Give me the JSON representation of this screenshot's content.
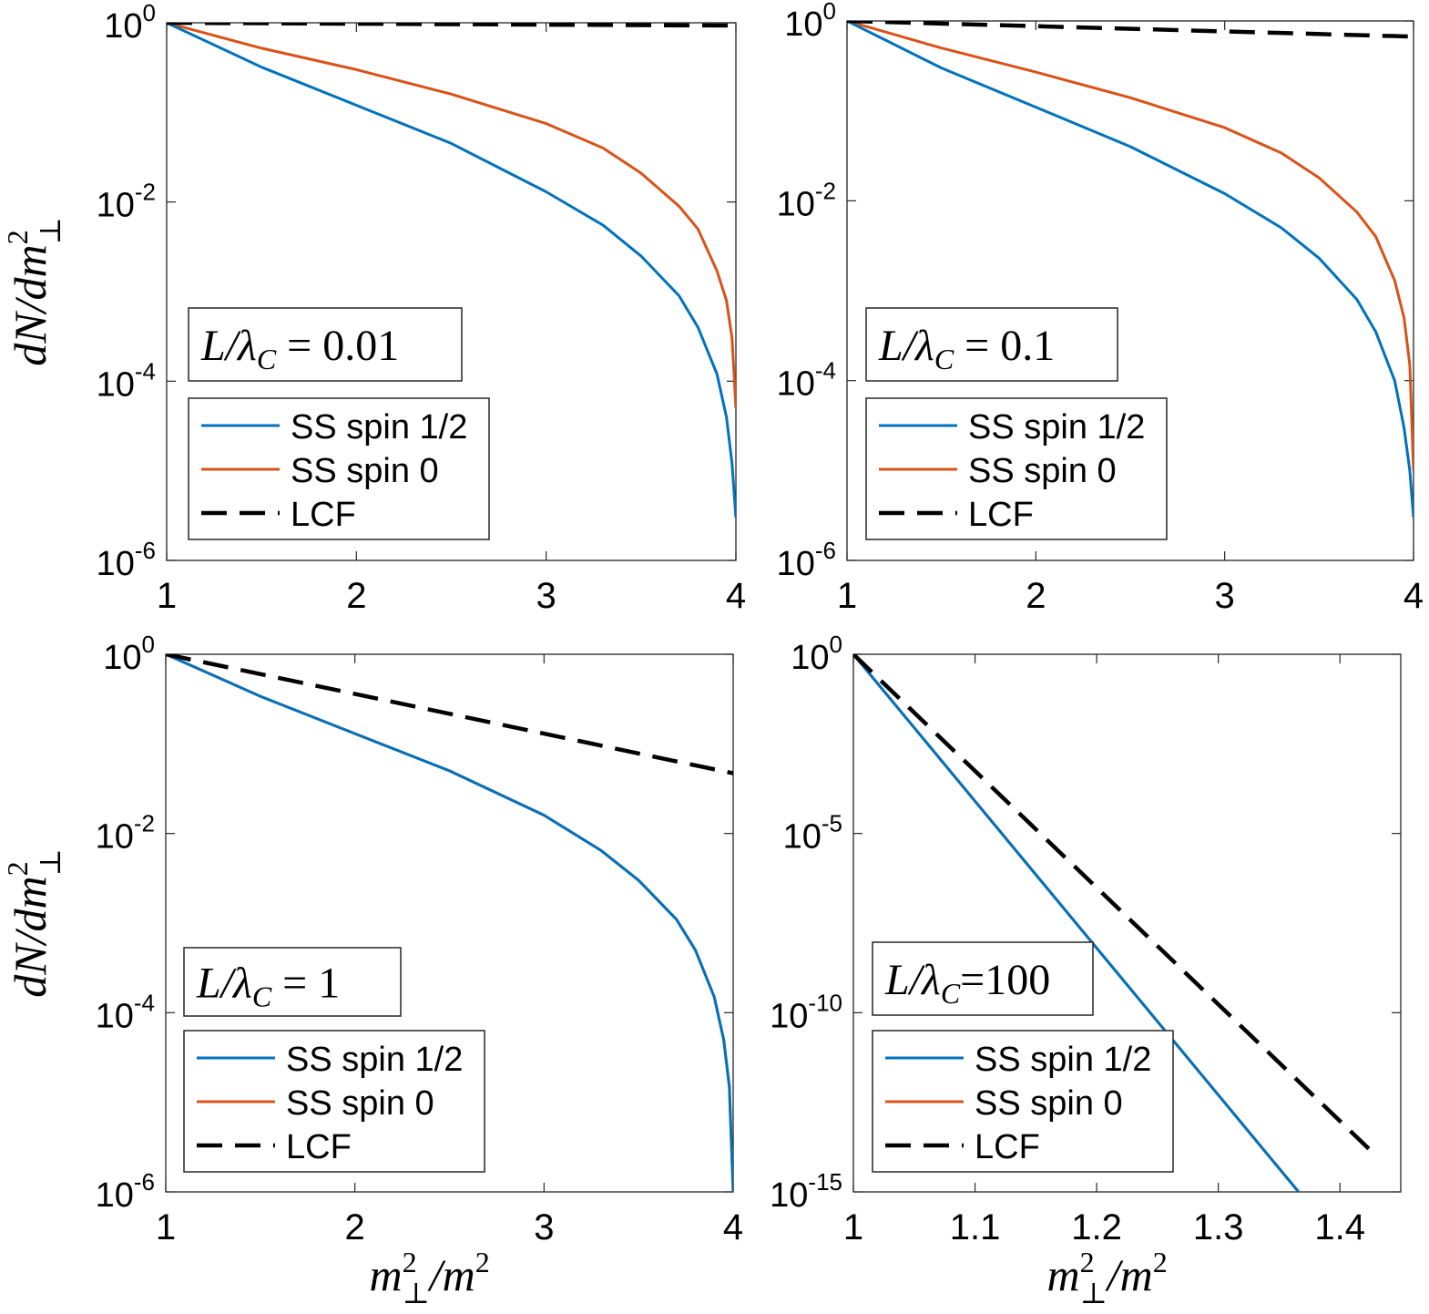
{
  "chart_data": [
    {
      "type": "line",
      "panel": "top-left",
      "annotation": {
        "lhs": "L/λ",
        "sub": "C",
        "rel": " = ",
        "value": "0.01"
      },
      "ylabel": {
        "base": "dN/dm",
        "sup": "2",
        "sub": "⊥"
      },
      "xlabel": null,
      "yscale": "log",
      "xlim": [
        1,
        4
      ],
      "ylim": [
        1e-06,
        1
      ],
      "xticks": [
        1,
        2,
        3,
        4
      ],
      "xtick_labels": [
        "1",
        "2",
        "3",
        "4"
      ],
      "yticks": [
        1e-06,
        0.0001,
        0.01,
        1
      ],
      "ytick_labels": [
        {
          "base": "10",
          "exp": "-6"
        },
        {
          "base": "10",
          "exp": "-4"
        },
        {
          "base": "10",
          "exp": "-2"
        },
        {
          "base": "10",
          "exp": "0"
        }
      ],
      "legend": {
        "position": "bottom-left",
        "entries": [
          "SS spin 1/2",
          "SS spin 0",
          "LCF"
        ]
      },
      "series": [
        {
          "name": "SS spin 1/2",
          "color": "#0072bd",
          "style": "solid",
          "x": [
            1,
            1.5,
            2,
            2.5,
            3,
            3.3,
            3.5,
            3.7,
            3.8,
            3.9,
            3.95,
            3.98,
            4.0
          ],
          "y": [
            1,
            0.32,
            0.12,
            0.045,
            0.013,
            0.0055,
            0.0025,
            0.0009,
            0.0004,
            0.00012,
            4e-05,
            1.2e-05,
            3e-06
          ]
        },
        {
          "name": "SS spin 0",
          "color": "#d95319",
          "style": "solid",
          "x": [
            1,
            1.5,
            2,
            2.5,
            3,
            3.3,
            3.5,
            3.7,
            3.8,
            3.9,
            3.95,
            3.98,
            4.0
          ],
          "y": [
            1,
            0.52,
            0.3,
            0.16,
            0.075,
            0.04,
            0.021,
            0.009,
            0.005,
            0.0017,
            0.0008,
            0.0003,
            5e-05
          ]
        },
        {
          "name": "LCF",
          "color": "#000000",
          "style": "dashed",
          "x": [
            1,
            4
          ],
          "y": [
            1,
            0.93
          ]
        }
      ]
    },
    {
      "type": "line",
      "panel": "top-right",
      "annotation": {
        "lhs": "L/λ",
        "sub": "C",
        "rel": " = ",
        "value": "0.1"
      },
      "ylabel": null,
      "xlabel": null,
      "yscale": "log",
      "xlim": [
        1,
        4
      ],
      "ylim": [
        1e-06,
        1
      ],
      "xticks": [
        1,
        2,
        3,
        4
      ],
      "xtick_labels": [
        "1",
        "2",
        "3",
        "4"
      ],
      "yticks": [
        1e-06,
        0.0001,
        0.01,
        1
      ],
      "ytick_labels": [
        {
          "base": "10",
          "exp": "-6"
        },
        {
          "base": "10",
          "exp": "-4"
        },
        {
          "base": "10",
          "exp": "-2"
        },
        {
          "base": "10",
          "exp": "0"
        }
      ],
      "legend": {
        "position": "bottom-left",
        "entries": [
          "SS spin 1/2",
          "SS spin 0",
          "LCF"
        ]
      },
      "series": [
        {
          "name": "SS spin 1/2",
          "color": "#0072bd",
          "style": "solid",
          "x": [
            1,
            1.5,
            2,
            2.5,
            3,
            3.3,
            3.5,
            3.7,
            3.8,
            3.9,
            3.95,
            3.98,
            4.0
          ],
          "y": [
            1,
            0.3,
            0.11,
            0.04,
            0.012,
            0.005,
            0.0023,
            0.0008,
            0.00035,
            0.0001,
            3e-05,
            1e-05,
            3e-06
          ]
        },
        {
          "name": "SS spin 0",
          "color": "#d95319",
          "style": "solid",
          "x": [
            1,
            1.5,
            2,
            2.5,
            3,
            3.3,
            3.5,
            3.7,
            3.8,
            3.9,
            3.95,
            3.98,
            4.0
          ],
          "y": [
            1,
            0.5,
            0.27,
            0.14,
            0.065,
            0.034,
            0.018,
            0.0075,
            0.004,
            0.0013,
            0.0005,
            0.00015,
            1e-05
          ]
        },
        {
          "name": "LCF",
          "color": "#000000",
          "style": "dashed",
          "x": [
            1,
            4
          ],
          "y": [
            1,
            0.67
          ]
        }
      ]
    },
    {
      "type": "line",
      "panel": "bottom-left",
      "annotation": {
        "lhs": "L/λ",
        "sub": "C",
        "rel": " = ",
        "value": "1"
      },
      "ylabel": {
        "base": "dN/dm",
        "sup": "2",
        "sub": "⊥"
      },
      "xlabel": {
        "base": "m",
        "sup": "2",
        "sub": "⊥",
        "rest": "/m",
        "rest_sup": "2"
      },
      "yscale": "log",
      "xlim": [
        1,
        4
      ],
      "ylim": [
        1e-06,
        1
      ],
      "xticks": [
        1,
        2,
        3,
        4
      ],
      "xtick_labels": [
        "1",
        "2",
        "3",
        "4"
      ],
      "yticks": [
        1e-06,
        0.0001,
        0.01,
        1
      ],
      "ytick_labels": [
        {
          "base": "10",
          "exp": "-6"
        },
        {
          "base": "10",
          "exp": "-4"
        },
        {
          "base": "10",
          "exp": "-2"
        },
        {
          "base": "10",
          "exp": "0"
        }
      ],
      "legend": {
        "position": "bottom-left",
        "entries": [
          "SS spin 1/2",
          "SS spin 0",
          "LCF"
        ]
      },
      "series": [
        {
          "name": "SS spin 1/2",
          "color": "#0072bd",
          "style": "solid",
          "x": [
            1,
            1.5,
            2,
            2.5,
            3,
            3.3,
            3.5,
            3.7,
            3.8,
            3.9,
            3.95,
            3.98,
            4.0
          ],
          "y": [
            1,
            0.34,
            0.13,
            0.05,
            0.016,
            0.0065,
            0.003,
            0.0011,
            0.0005,
            0.00015,
            5e-05,
            1.5e-05,
            1e-06
          ]
        },
        {
          "name": "SS spin 0",
          "color": "#d95319",
          "style": "solid",
          "x": [
            1,
            1.5,
            2,
            2.5,
            3,
            3.3,
            3.5,
            3.7,
            3.8,
            3.9,
            3.95,
            3.98,
            4.0
          ],
          "y": [
            1,
            0.34,
            0.13,
            0.05,
            0.016,
            0.0065,
            0.003,
            0.0011,
            0.0005,
            0.00015,
            5e-05,
            1.5e-05,
            1e-06
          ]
        },
        {
          "name": "LCF",
          "color": "#000000",
          "style": "dashed",
          "x": [
            1,
            4
          ],
          "y": [
            1,
            0.047
          ]
        }
      ]
    },
    {
      "type": "line",
      "panel": "bottom-right",
      "annotation": {
        "lhs": "L/λ",
        "sub": "C",
        "rel": "=",
        "value": "100"
      },
      "ylabel": null,
      "xlabel": {
        "base": "m",
        "sup": "2",
        "sub": "⊥",
        "rest": "/m",
        "rest_sup": "2"
      },
      "yscale": "log",
      "xlim": [
        1,
        1.45
      ],
      "ylim": [
        1e-15,
        1
      ],
      "xticks": [
        1,
        1.1,
        1.2,
        1.3,
        1.4
      ],
      "xtick_labels": [
        "1",
        "1.1",
        "1.2",
        "1.3",
        "1.4"
      ],
      "yticks": [
        1e-15,
        1e-10,
        1e-05,
        1
      ],
      "ytick_labels": [
        {
          "base": "10",
          "exp": "-15"
        },
        {
          "base": "10",
          "exp": "-10"
        },
        {
          "base": "10",
          "exp": "-5"
        },
        {
          "base": "10",
          "exp": "0"
        }
      ],
      "legend": {
        "position": "bottom-left",
        "entries": [
          "SS spin 1/2",
          "SS spin 0",
          "LCF"
        ]
      },
      "series": [
        {
          "name": "SS spin 1/2",
          "color": "#0072bd",
          "style": "solid",
          "x": [
            1,
            1.366
          ],
          "y": [
            1,
            1e-15
          ]
        },
        {
          "name": "SS spin 0",
          "color": "#d95319",
          "style": "solid",
          "x": [
            1,
            1.366
          ],
          "y": [
            1,
            1e-15
          ]
        },
        {
          "name": "LCF",
          "color": "#000000",
          "style": "dashed",
          "x": [
            1,
            1.43
          ],
          "y": [
            1,
            1e-14
          ]
        }
      ]
    }
  ]
}
